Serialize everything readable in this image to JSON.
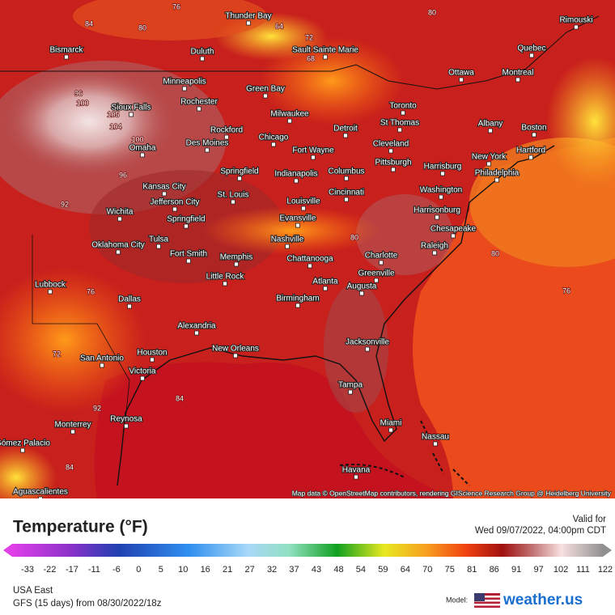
{
  "map": {
    "cities": [
      {
        "name": "Thunder Bay"
      },
      {
        "name": "Bismarck"
      },
      {
        "name": "Duluth"
      },
      {
        "name": "Sault Sainte Marie"
      },
      {
        "name": "Rimouski"
      },
      {
        "name": "Quebec"
      },
      {
        "name": "Ottawa"
      },
      {
        "name": "Montreal"
      },
      {
        "name": "Minneapolis"
      },
      {
        "name": "Green Bay"
      },
      {
        "name": "Sioux Falls"
      },
      {
        "name": "Rochester"
      },
      {
        "name": "Milwaukee"
      },
      {
        "name": "Toronto"
      },
      {
        "name": "Albany"
      },
      {
        "name": "Boston"
      },
      {
        "name": "Rockford"
      },
      {
        "name": "Chicago"
      },
      {
        "name": "Detroit"
      },
      {
        "name": "St Thomas"
      },
      {
        "name": "Omaha"
      },
      {
        "name": "Des Moines"
      },
      {
        "name": "Fort Wayne"
      },
      {
        "name": "Cleveland"
      },
      {
        "name": "New York"
      },
      {
        "name": "Hartford"
      },
      {
        "name": "Pittsburgh"
      },
      {
        "name": "Harrisburg"
      },
      {
        "name": "Philadelphia"
      },
      {
        "name": "Springfield"
      },
      {
        "name": "Indianapolis"
      },
      {
        "name": "Columbus"
      },
      {
        "name": "Kansas City"
      },
      {
        "name": "Jefferson City"
      },
      {
        "name": "St. Louis"
      },
      {
        "name": "Cincinnati"
      },
      {
        "name": "Washington"
      },
      {
        "name": "Louisville"
      },
      {
        "name": "Wichita"
      },
      {
        "name": "Springfield"
      },
      {
        "name": "Evansville"
      },
      {
        "name": "Harrisonburg"
      },
      {
        "name": "Chesapeake"
      },
      {
        "name": "Oklahoma City"
      },
      {
        "name": "Tulsa"
      },
      {
        "name": "Nashville"
      },
      {
        "name": "Raleigh"
      },
      {
        "name": "Fort Smith"
      },
      {
        "name": "Memphis"
      },
      {
        "name": "Chattanooga"
      },
      {
        "name": "Charlotte"
      },
      {
        "name": "Greenville"
      },
      {
        "name": "Little Rock"
      },
      {
        "name": "Lubbock"
      },
      {
        "name": "Atlanta"
      },
      {
        "name": "Augusta"
      },
      {
        "name": "Dallas"
      },
      {
        "name": "Birmingham"
      },
      {
        "name": "Alexandria"
      },
      {
        "name": "Houston"
      },
      {
        "name": "New Orleans"
      },
      {
        "name": "Jacksonville"
      },
      {
        "name": "San Antonio"
      },
      {
        "name": "Victoria"
      },
      {
        "name": "Tampa"
      },
      {
        "name": "Reynosa"
      },
      {
        "name": "Monterrey"
      },
      {
        "name": "Miami"
      },
      {
        "name": "Nassau"
      },
      {
        "name": "Gómez Palacio"
      },
      {
        "name": "Havana"
      },
      {
        "name": "Aguascalientes"
      }
    ],
    "contour_labels": [
      96,
      100,
      105,
      104,
      100,
      92,
      96,
      84,
      80,
      80,
      76,
      72,
      84,
      80,
      80,
      76,
      64,
      72,
      68,
      92,
      84,
      76
    ],
    "credit": "Map data © OpenStreetMap contributors, rendering GIScience Research Group @ Heidelberg University"
  },
  "legend": {
    "title": "Temperature (°F)",
    "valid_label": "Valid for",
    "valid_time": "Wed 09/07/2022, 04:00pm CDT",
    "ticks": [
      -33,
      -22,
      -17,
      -11,
      -6,
      0,
      5,
      10,
      16,
      21,
      27,
      32,
      37,
      43,
      48,
      54,
      59,
      64,
      70,
      75,
      81,
      86,
      91,
      97,
      102,
      111,
      122
    ]
  },
  "footer": {
    "region": "USA East",
    "model_run": "GFS (15 days) from  08/30/2022/18z",
    "model_label": "Model:",
    "brand": "weather.us"
  }
}
